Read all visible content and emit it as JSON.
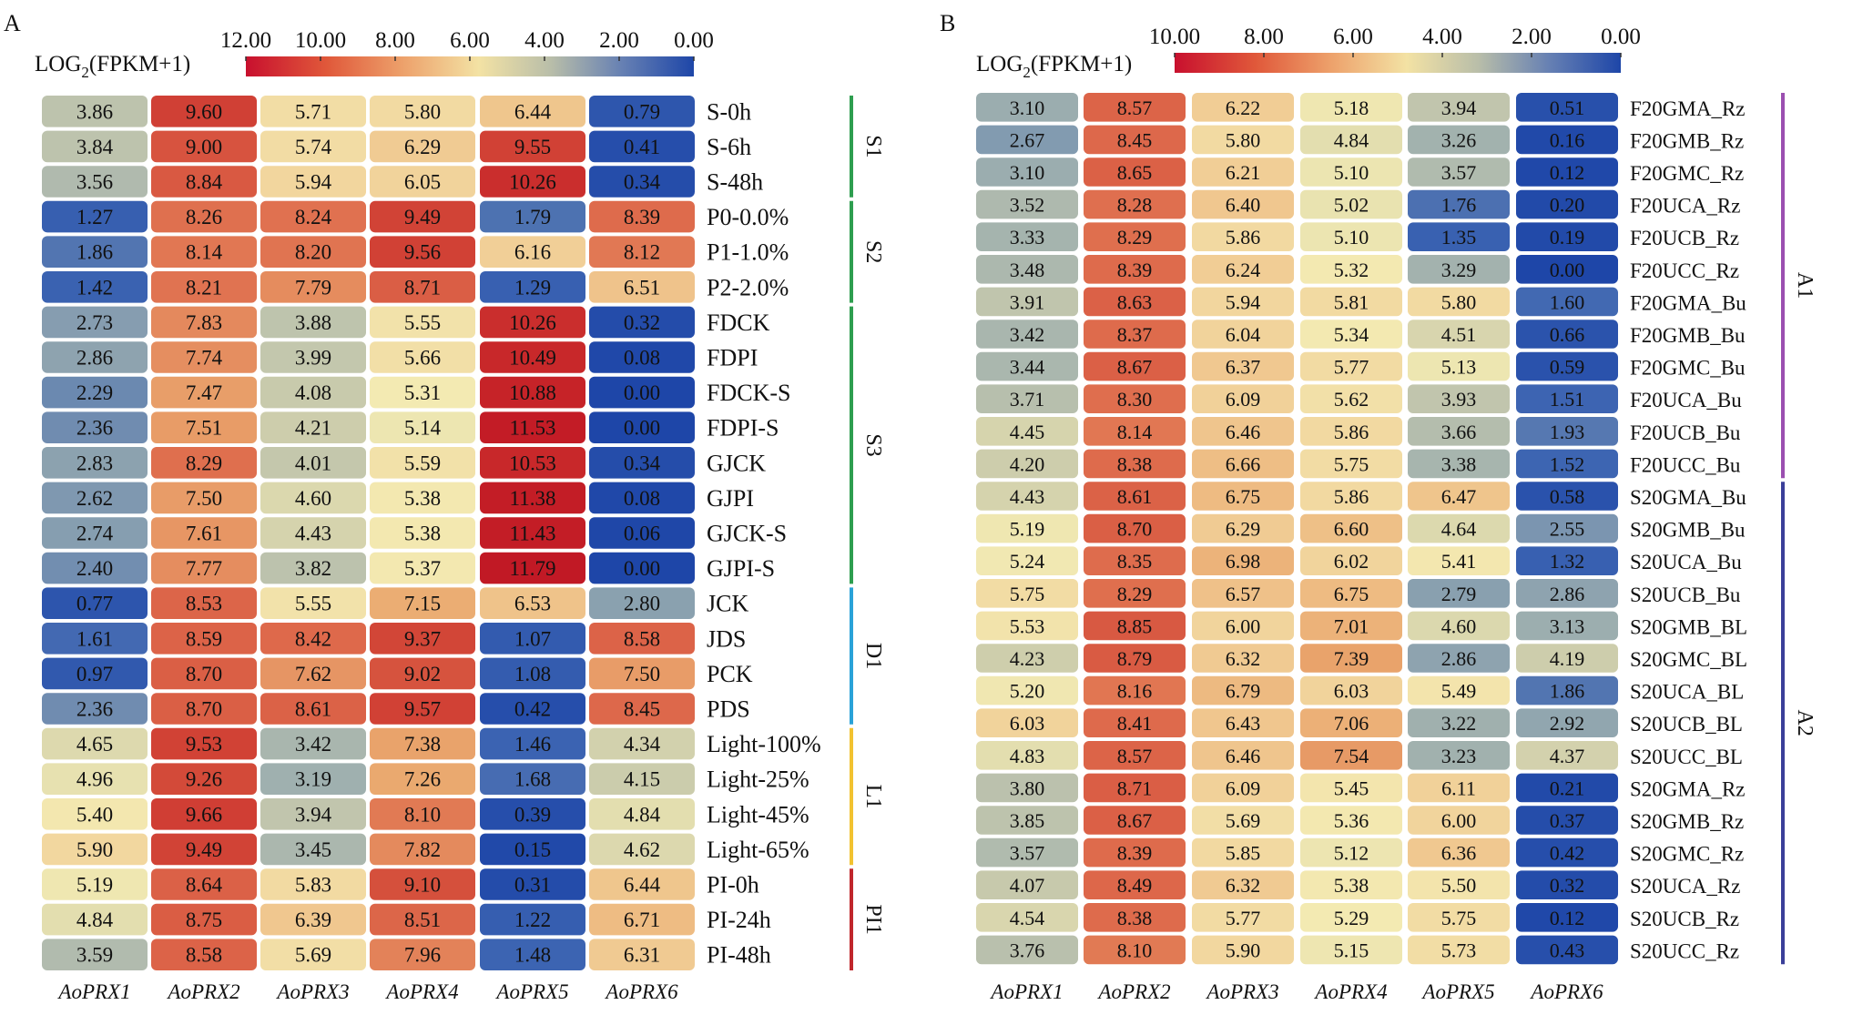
{
  "chart_data": [
    {
      "type": "heatmap",
      "panel_label": "A",
      "colorbar": {
        "title_main": "LOG",
        "title_sub": "2",
        "title_rest": "(FPKM+1)",
        "ticks": [
          "12.00",
          "10.00",
          "8.00",
          "6.00",
          "4.00",
          "2.00",
          "0.00"
        ],
        "range": [
          0,
          12
        ]
      },
      "columns": [
        "AoPRX1",
        "AoPRX2",
        "AoPRX3",
        "AoPRX4",
        "AoPRX5",
        "AoPRX6"
      ],
      "rows": [
        {
          "label": "S-0h",
          "values": [
            3.86,
            9.6,
            5.71,
            5.8,
            6.44,
            0.79
          ]
        },
        {
          "label": "S-6h",
          "values": [
            3.84,
            9.0,
            5.74,
            6.29,
            9.55,
            0.41
          ]
        },
        {
          "label": "S-48h",
          "values": [
            3.56,
            8.84,
            5.94,
            6.05,
            10.26,
            0.34
          ]
        },
        {
          "label": "P0-0.0%",
          "values": [
            1.27,
            8.26,
            8.24,
            9.49,
            1.79,
            8.39
          ]
        },
        {
          "label": "P1-1.0%",
          "values": [
            1.86,
            8.14,
            8.2,
            9.56,
            6.16,
            8.12
          ]
        },
        {
          "label": "P2-2.0%",
          "values": [
            1.42,
            8.21,
            7.79,
            8.71,
            1.29,
            6.51
          ]
        },
        {
          "label": "FDCK",
          "values": [
            2.73,
            7.83,
            3.88,
            5.55,
            10.26,
            0.32
          ]
        },
        {
          "label": "FDPI",
          "values": [
            2.86,
            7.74,
            3.99,
            5.66,
            10.49,
            0.08
          ]
        },
        {
          "label": "FDCK-S",
          "values": [
            2.29,
            7.47,
            4.08,
            5.31,
            10.88,
            0.0
          ]
        },
        {
          "label": "FDPI-S",
          "values": [
            2.36,
            7.51,
            4.21,
            5.14,
            11.53,
            0.0
          ]
        },
        {
          "label": "GJCK",
          "values": [
            2.83,
            8.29,
            4.01,
            5.59,
            10.53,
            0.34
          ]
        },
        {
          "label": "GJPI",
          "values": [
            2.62,
            7.5,
            4.6,
            5.38,
            11.38,
            0.08
          ]
        },
        {
          "label": "GJCK-S",
          "values": [
            2.74,
            7.61,
            4.43,
            5.38,
            11.43,
            0.06
          ]
        },
        {
          "label": "GJPI-S",
          "values": [
            2.4,
            7.77,
            3.82,
            5.37,
            11.79,
            0.0
          ]
        },
        {
          "label": "JCK",
          "values": [
            0.77,
            8.53,
            5.55,
            7.15,
            6.53,
            2.8
          ]
        },
        {
          "label": "JDS",
          "values": [
            1.61,
            8.59,
            8.42,
            9.37,
            1.07,
            8.58
          ]
        },
        {
          "label": "PCK",
          "values": [
            0.97,
            8.7,
            7.62,
            9.02,
            1.08,
            7.5
          ]
        },
        {
          "label": "PDS",
          "values": [
            2.36,
            8.7,
            8.61,
            9.57,
            0.42,
            8.45
          ]
        },
        {
          "label": "Light-100%",
          "values": [
            4.65,
            9.53,
            3.42,
            7.38,
            1.46,
            4.34
          ]
        },
        {
          "label": "Light-25%",
          "values": [
            4.96,
            9.26,
            3.19,
            7.26,
            1.68,
            4.15
          ]
        },
        {
          "label": "Light-45%",
          "values": [
            5.4,
            9.66,
            3.94,
            8.1,
            0.39,
            4.84
          ]
        },
        {
          "label": "Light-65%",
          "values": [
            5.9,
            9.49,
            3.45,
            7.82,
            0.15,
            4.62
          ]
        },
        {
          "label": "PI-0h",
          "values": [
            5.19,
            8.64,
            5.83,
            9.1,
            0.31,
            6.44
          ]
        },
        {
          "label": "PI-24h",
          "values": [
            4.84,
            8.75,
            6.39,
            8.51,
            1.22,
            6.71
          ]
        },
        {
          "label": "PI-48h",
          "values": [
            3.59,
            8.58,
            5.69,
            7.96,
            1.48,
            6.31
          ]
        }
      ],
      "groups": [
        {
          "label": "S1",
          "rows": [
            0,
            2
          ],
          "color": "#2e9e4f"
        },
        {
          "label": "S2",
          "rows": [
            3,
            5
          ],
          "color": "#2e9e4f"
        },
        {
          "label": "S3",
          "rows": [
            6,
            13
          ],
          "color": "#2e9e4f"
        },
        {
          "label": "D1",
          "rows": [
            14,
            17
          ],
          "color": "#2aa2d8"
        },
        {
          "label": "L1",
          "rows": [
            18,
            21
          ],
          "color": "#f2c230"
        },
        {
          "label": "PI1",
          "rows": [
            22,
            24
          ],
          "color": "#c0262c"
        }
      ]
    },
    {
      "type": "heatmap",
      "panel_label": "B",
      "colorbar": {
        "title_main": "LOG",
        "title_sub": "2",
        "title_rest": "(FPKM+1)",
        "ticks": [
          "10.00",
          "8.00",
          "6.00",
          "4.00",
          "2.00",
          "0.00"
        ],
        "range": [
          0,
          10
        ]
      },
      "columns": [
        "AoPRX1",
        "AoPRX2",
        "AoPRX3",
        "AoPRX4",
        "AoPRX5",
        "AoPRX6"
      ],
      "rows": [
        {
          "label": "F20GMA_Rz",
          "values": [
            3.1,
            8.57,
            6.22,
            5.18,
            3.94,
            0.51
          ]
        },
        {
          "label": "F20GMB_Rz",
          "values": [
            2.67,
            8.45,
            5.8,
            4.84,
            3.26,
            0.16
          ]
        },
        {
          "label": "F20GMC_Rz",
          "values": [
            3.1,
            8.65,
            6.21,
            5.1,
            3.57,
            0.12
          ]
        },
        {
          "label": "F20UCA_Rz",
          "values": [
            3.52,
            8.28,
            6.4,
            5.02,
            1.76,
            0.2
          ]
        },
        {
          "label": "F20UCB_Rz",
          "values": [
            3.33,
            8.29,
            5.86,
            5.1,
            1.35,
            0.19
          ]
        },
        {
          "label": "F20UCC_Rz",
          "values": [
            3.48,
            8.39,
            6.24,
            5.32,
            3.29,
            0.0
          ]
        },
        {
          "label": "F20GMA_Bu",
          "values": [
            3.91,
            8.63,
            5.94,
            5.81,
            5.8,
            1.6
          ]
        },
        {
          "label": "F20GMB_Bu",
          "values": [
            3.42,
            8.37,
            6.04,
            5.34,
            4.51,
            0.66
          ]
        },
        {
          "label": "F20GMC_Bu",
          "values": [
            3.44,
            8.67,
            6.37,
            5.77,
            5.13,
            0.59
          ]
        },
        {
          "label": "F20UCA_Bu",
          "values": [
            3.71,
            8.3,
            6.09,
            5.62,
            3.93,
            1.51
          ]
        },
        {
          "label": "F20UCB_Bu",
          "values": [
            4.45,
            8.14,
            6.46,
            5.86,
            3.66,
            1.93
          ]
        },
        {
          "label": "F20UCC_Bu",
          "values": [
            4.2,
            8.38,
            6.66,
            5.75,
            3.38,
            1.52
          ]
        },
        {
          "label": "S20GMA_Bu",
          "values": [
            4.43,
            8.61,
            6.75,
            5.86,
            6.47,
            0.58
          ]
        },
        {
          "label": "S20GMB_Bu",
          "values": [
            5.19,
            8.7,
            6.29,
            6.6,
            4.64,
            2.55
          ]
        },
        {
          "label": "S20UCA_Bu",
          "values": [
            5.24,
            8.35,
            6.98,
            6.02,
            5.41,
            1.32
          ]
        },
        {
          "label": "S20UCB_Bu",
          "values": [
            5.75,
            8.29,
            6.57,
            6.75,
            2.79,
            2.86
          ]
        },
        {
          "label": "S20GMB_BL",
          "values": [
            5.53,
            8.85,
            6.0,
            7.01,
            4.6,
            3.13
          ]
        },
        {
          "label": "S20GMC_BL",
          "values": [
            4.23,
            8.79,
            6.32,
            7.39,
            2.86,
            4.19
          ]
        },
        {
          "label": "S20UCA_BL",
          "values": [
            5.2,
            8.16,
            6.79,
            6.03,
            5.49,
            1.86
          ]
        },
        {
          "label": "S20UCB_BL",
          "values": [
            6.03,
            8.41,
            6.43,
            7.06,
            3.22,
            2.92
          ]
        },
        {
          "label": "S20UCC_BL",
          "values": [
            4.83,
            8.57,
            6.46,
            7.54,
            3.23,
            4.37
          ]
        },
        {
          "label": "S20GMA_Rz",
          "values": [
            3.8,
            8.71,
            6.09,
            5.45,
            6.11,
            0.21
          ]
        },
        {
          "label": "S20GMB_Rz",
          "values": [
            3.85,
            8.67,
            5.69,
            5.36,
            6.0,
            0.37
          ]
        },
        {
          "label": "S20GMC_Rz",
          "values": [
            3.57,
            8.39,
            5.85,
            5.12,
            6.36,
            0.42
          ]
        },
        {
          "label": "S20UCA_Rz",
          "values": [
            4.07,
            8.49,
            6.32,
            5.38,
            5.5,
            0.32
          ]
        },
        {
          "label": "S20UCB_Rz",
          "values": [
            4.54,
            8.38,
            5.77,
            5.29,
            5.75,
            0.12
          ]
        },
        {
          "label": "S20UCC_Rz",
          "values": [
            3.76,
            8.1,
            5.9,
            5.15,
            5.73,
            0.43
          ]
        }
      ],
      "groups": [
        {
          "label": "A1",
          "rows": [
            0,
            11
          ],
          "color": "#9b4fb0"
        },
        {
          "label": "A2",
          "rows": [
            12,
            26
          ],
          "color": "#3b3f99"
        }
      ]
    }
  ]
}
